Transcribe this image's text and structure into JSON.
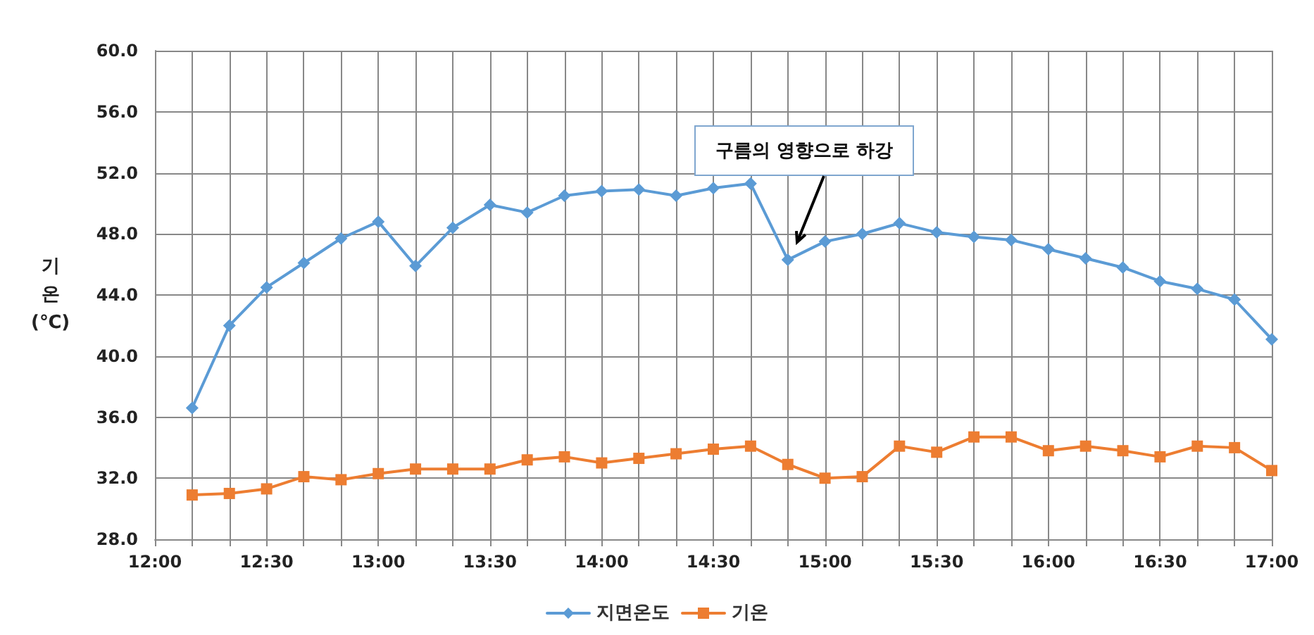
{
  "chart_data": {
    "type": "line",
    "x": [
      12.1667,
      12.3333,
      12.5,
      12.6667,
      12.8333,
      13,
      13.1667,
      13.3333,
      13.5,
      13.6667,
      13.8333,
      14,
      14.1667,
      14.3333,
      14.5,
      14.6667,
      14.8333,
      15,
      15.1667,
      15.3333,
      15.5,
      15.6667,
      15.8333,
      16,
      16.1667,
      16.3333,
      16.5,
      16.6667,
      16.8333,
      17
    ],
    "series": [
      {
        "name": "지면온도",
        "color": "#5b9bd5",
        "marker": "diamond",
        "values": [
          36.6,
          42.0,
          44.5,
          46.1,
          47.7,
          48.8,
          45.9,
          48.4,
          49.9,
          49.4,
          50.5,
          50.8,
          50.9,
          50.5,
          51.0,
          51.3,
          46.3,
          47.5,
          48.0,
          48.7,
          48.1,
          47.8,
          47.6,
          47.0,
          46.4,
          45.8,
          44.9,
          44.4,
          43.7,
          41.1
        ]
      },
      {
        "name": "기온",
        "color": "#ed7d31",
        "marker": "square",
        "values": [
          30.9,
          31.0,
          31.3,
          32.1,
          31.9,
          32.3,
          32.6,
          32.6,
          32.6,
          33.2,
          33.4,
          33.0,
          33.3,
          33.6,
          33.9,
          34.1,
          32.9,
          32.0,
          32.1,
          34.1,
          33.7,
          34.7,
          34.7,
          33.8,
          34.1,
          33.8,
          33.4,
          34.1,
          34.0,
          32.5
        ]
      }
    ],
    "ylabel": "기 온 (℃)",
    "xlim": [
      12,
      17
    ],
    "xticks": [
      {
        "value": 12,
        "label": "12:00"
      },
      {
        "value": 12.1667,
        "label": null
      },
      {
        "value": 12.3333,
        "label": null
      },
      {
        "value": 12.5,
        "label": "12:30"
      },
      {
        "value": 12.6667,
        "label": null
      },
      {
        "value": 12.8333,
        "label": null
      },
      {
        "value": 13,
        "label": "13:00"
      },
      {
        "value": 13.1667,
        "label": null
      },
      {
        "value": 13.3333,
        "label": null
      },
      {
        "value": 13.5,
        "label": "13:30"
      },
      {
        "value": 13.6667,
        "label": null
      },
      {
        "value": 13.8333,
        "label": null
      },
      {
        "value": 14,
        "label": "14:00"
      },
      {
        "value": 14.1667,
        "label": null
      },
      {
        "value": 14.3333,
        "label": null
      },
      {
        "value": 14.5,
        "label": "14:30"
      },
      {
        "value": 14.6667,
        "label": null
      },
      {
        "value": 14.8333,
        "label": null
      },
      {
        "value": 15,
        "label": "15:00"
      },
      {
        "value": 15.1667,
        "label": null
      },
      {
        "value": 15.3333,
        "label": null
      },
      {
        "value": 15.5,
        "label": "15:30"
      },
      {
        "value": 15.6667,
        "label": null
      },
      {
        "value": 15.8333,
        "label": null
      },
      {
        "value": 16,
        "label": "16:00"
      },
      {
        "value": 16.1667,
        "label": null
      },
      {
        "value": 16.3333,
        "label": null
      },
      {
        "value": 16.5,
        "label": "16:30"
      },
      {
        "value": 16.6667,
        "label": null
      },
      {
        "value": 16.8333,
        "label": null
      },
      {
        "value": 17,
        "label": "17:00"
      }
    ],
    "ylim": [
      28,
      60
    ],
    "yticks": [
      {
        "value": 28,
        "label": "28.0"
      },
      {
        "value": 32,
        "label": "32.0"
      },
      {
        "value": 36,
        "label": "36.0"
      },
      {
        "value": 40,
        "label": "40.0"
      },
      {
        "value": 44,
        "label": "44.0"
      },
      {
        "value": 48,
        "label": "48.0"
      },
      {
        "value": 52,
        "label": "52.0"
      },
      {
        "value": 56,
        "label": "56.0"
      },
      {
        "value": 60,
        "label": "60.0"
      }
    ],
    "annotations": [
      "구름의 영향으로 하강"
    ],
    "grid": true,
    "legend": "bottom",
    "line_style": "solid"
  }
}
